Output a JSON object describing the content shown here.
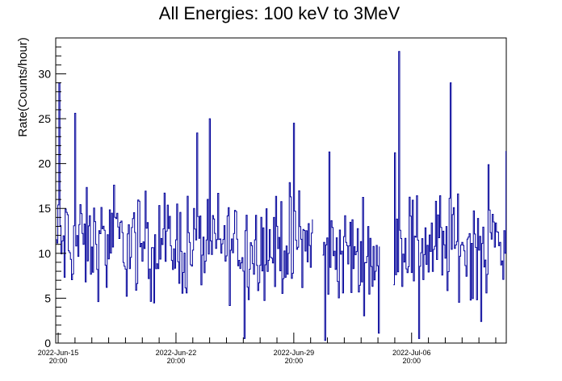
{
  "chart_data": {
    "type": "line",
    "title": "All Energies:  100 keV to 3MeV",
    "xlabel": "",
    "ylabel": "Rate(Counts/hour)",
    "x_unit": "date",
    "xlim": [
      "2022-06-15 16:30",
      "2022-07-12 11:00"
    ],
    "ylim": [
      0,
      34
    ],
    "grid": false,
    "legend": "none",
    "y_ticks": [
      0,
      5,
      10,
      15,
      20,
      25,
      30
    ],
    "x_ticks": [
      {
        "date": "2022-Jun-15",
        "time": "20:00"
      },
      {
        "date": "2022-Jun-22",
        "time": "20:00"
      },
      {
        "date": "2022-Jun-29",
        "time": "20:00"
      },
      {
        "date": "2022-Jul-06",
        "time": "20:00"
      }
    ],
    "series": [
      {
        "color": "#000099",
        "data_segments": [
          {
            "start": "2022-06-15 16:30",
            "end": "2022-06-30 23:30",
            "baseline": 11,
            "spread": 4.2,
            "peaks": [
              [
                0.2,
                29
              ],
              [
                1.1,
                25.6
              ],
              [
                8.4,
                23.4
              ],
              [
                11.2,
                0.5
              ],
              [
                14.1,
                24.5
              ]
            ]
          },
          {
            "start": "2022-07-01 13:00",
            "end": "2022-07-04 22:00",
            "baseline": 10,
            "spread": 4.0,
            "peaks": [
              [
                0.1,
                0.3
              ],
              [
                0.4,
                21.3
              ],
              [
                3.3,
                1.1
              ]
            ]
          },
          {
            "start": "2022-07-05 00:00",
            "end": "2022-07-05 01:00",
            "baseline": 1.2,
            "spread": 0.2,
            "peaks": []
          },
          {
            "start": "2022-07-05 18:00",
            "end": "2022-07-12 11:00",
            "baseline": 11,
            "spread": 4.2,
            "peaks": [
              [
                0.05,
                21.2
              ],
              [
                0.3,
                32.5
              ],
              [
                1.5,
                0.5
              ],
              [
                3.4,
                29.0
              ],
              [
                5.2,
                2.4
              ],
              [
                6.7,
                21.4
              ]
            ]
          }
        ]
      }
    ]
  }
}
